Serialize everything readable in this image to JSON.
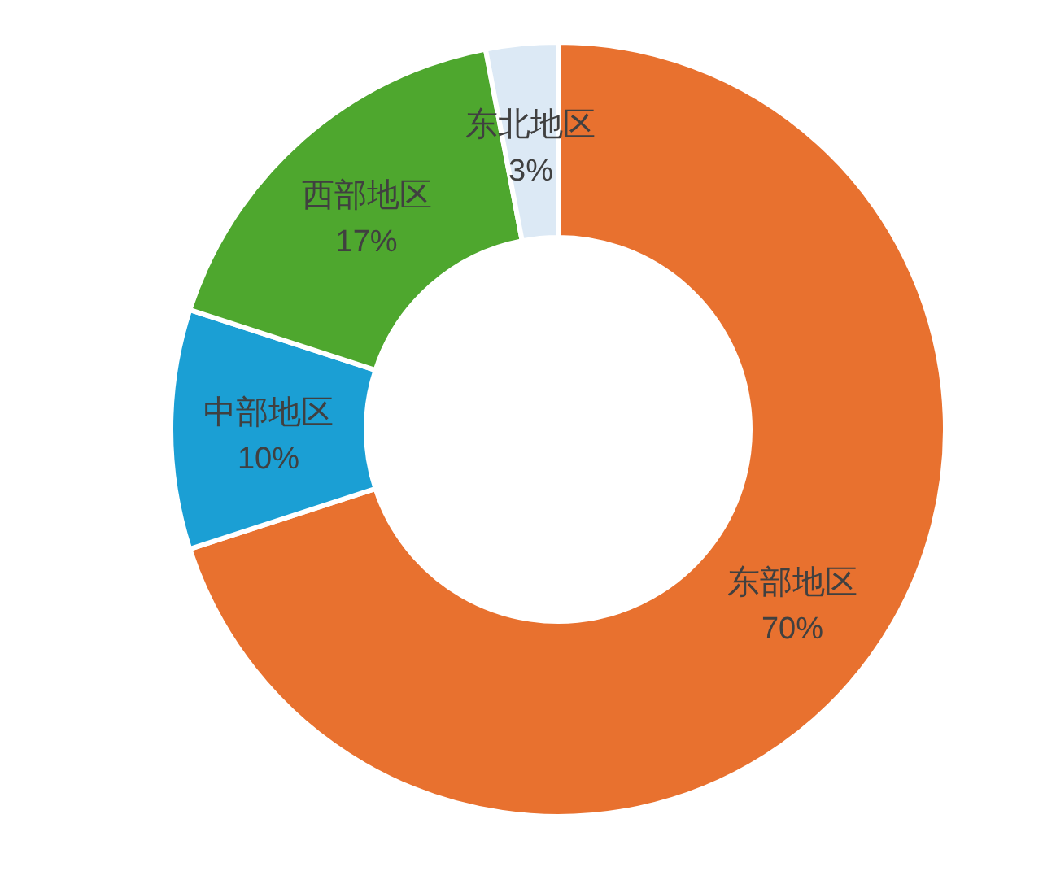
{
  "chart_data": {
    "type": "donut",
    "categories": [
      "东部地区",
      "中部地区",
      "西部地区",
      "东北地区"
    ],
    "values": [
      70,
      10,
      17,
      3
    ],
    "colors": [
      "#e8712f",
      "#1b9fd4",
      "#4ea72e",
      "#dce9f5"
    ],
    "value_labels": [
      "70%",
      "10%",
      "17%",
      "3%"
    ]
  }
}
